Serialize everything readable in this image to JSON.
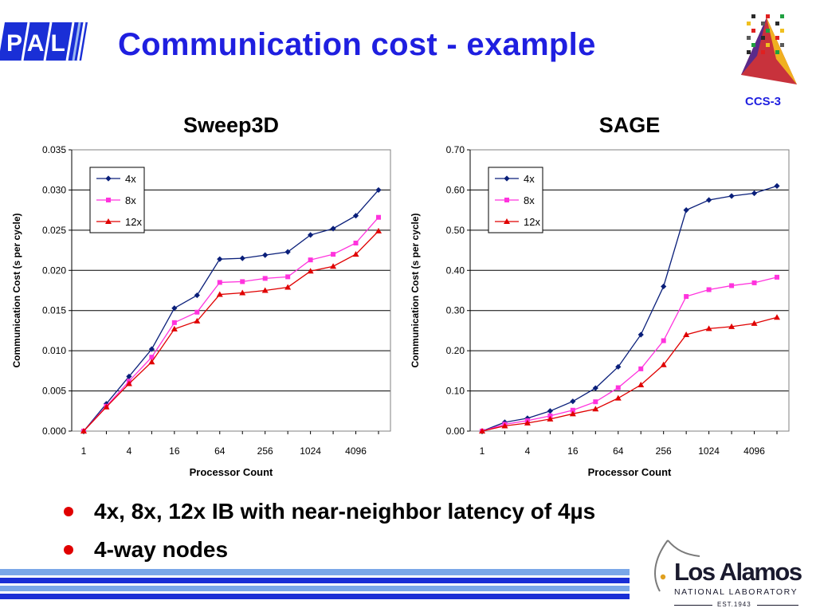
{
  "slide": {
    "title": "Communication cost - example",
    "bullets": [
      "4x, 8x, 12x IB with near-neighbor latency of 4µs",
      "4-way nodes"
    ]
  },
  "logos": {
    "pal": "PAL",
    "ccs": "CCS-3",
    "lanl_name": "Los Alamos",
    "lanl_sub": "NATIONAL LABORATORY",
    "lanl_est": "EST.1943"
  },
  "colors": {
    "title": "#1f1fe0",
    "bullet": "#e00000",
    "series_4x": "#0a1f7a",
    "series_8x": "#ff33dd",
    "series_12x": "#e00000",
    "footer_light": "#7aa7e8",
    "footer_dark": "#1a2fd6"
  },
  "chart_data": [
    {
      "type": "line",
      "title": "Sweep3D",
      "xlabel": "Processor Count",
      "ylabel": "Communication Cost (s per cycle)",
      "x": [
        1,
        2,
        4,
        8,
        16,
        32,
        64,
        128,
        256,
        512,
        1024,
        2048,
        4096,
        8192
      ],
      "xticks": [
        "1",
        "4",
        "16",
        "64",
        "256",
        "1024",
        "4096"
      ],
      "xtick_positions": [
        1,
        4,
        16,
        64,
        256,
        1024,
        4096
      ],
      "ylim": [
        0,
        0.035
      ],
      "yticks": [
        "0.000",
        "0.005",
        "0.010",
        "0.015",
        "0.020",
        "0.025",
        "0.030",
        "0.035"
      ],
      "grid": true,
      "legend": "top-left",
      "series": [
        {
          "name": "4x",
          "marker": "diamond",
          "values": [
            0.0,
            0.0034,
            0.0068,
            0.0102,
            0.0153,
            0.0169,
            0.0214,
            0.0215,
            0.0219,
            0.0223,
            0.0244,
            0.0252,
            0.0268,
            0.03
          ]
        },
        {
          "name": "8x",
          "marker": "square",
          "values": [
            0.0,
            0.0031,
            0.0062,
            0.0092,
            0.0135,
            0.0148,
            0.0185,
            0.0186,
            0.019,
            0.0192,
            0.0213,
            0.022,
            0.0234,
            0.0266
          ]
        },
        {
          "name": "12x",
          "marker": "triangle",
          "values": [
            0.0,
            0.003,
            0.0059,
            0.0086,
            0.0127,
            0.0137,
            0.017,
            0.0172,
            0.0175,
            0.0179,
            0.0199,
            0.0205,
            0.022,
            0.0249
          ]
        }
      ]
    },
    {
      "type": "line",
      "title": "SAGE",
      "xlabel": "Processor Count",
      "ylabel": "Communication Cost (s per cycle)",
      "x": [
        1,
        2,
        4,
        8,
        16,
        32,
        64,
        128,
        256,
        512,
        1024,
        2048,
        4096,
        8192
      ],
      "xticks": [
        "1",
        "4",
        "16",
        "64",
        "256",
        "1024",
        "4096"
      ],
      "xtick_positions": [
        1,
        4,
        16,
        64,
        256,
        1024,
        4096
      ],
      "ylim": [
        0,
        0.7
      ],
      "yticks": [
        "0.00",
        "0.10",
        "0.20",
        "0.30",
        "0.40",
        "0.50",
        "0.60",
        "0.70"
      ],
      "grid": true,
      "legend": "top-left",
      "series": [
        {
          "name": "4x",
          "marker": "diamond",
          "values": [
            0.0,
            0.022,
            0.032,
            0.05,
            0.074,
            0.107,
            0.16,
            0.24,
            0.36,
            0.55,
            0.575,
            0.585,
            0.592,
            0.61
          ]
        },
        {
          "name": "8x",
          "marker": "square",
          "values": [
            0.0,
            0.017,
            0.026,
            0.038,
            0.052,
            0.073,
            0.108,
            0.155,
            0.225,
            0.335,
            0.352,
            0.362,
            0.369,
            0.383
          ]
        },
        {
          "name": "12x",
          "marker": "triangle",
          "values": [
            0.0,
            0.013,
            0.02,
            0.03,
            0.043,
            0.055,
            0.082,
            0.115,
            0.165,
            0.24,
            0.255,
            0.26,
            0.268,
            0.283
          ]
        }
      ]
    }
  ]
}
